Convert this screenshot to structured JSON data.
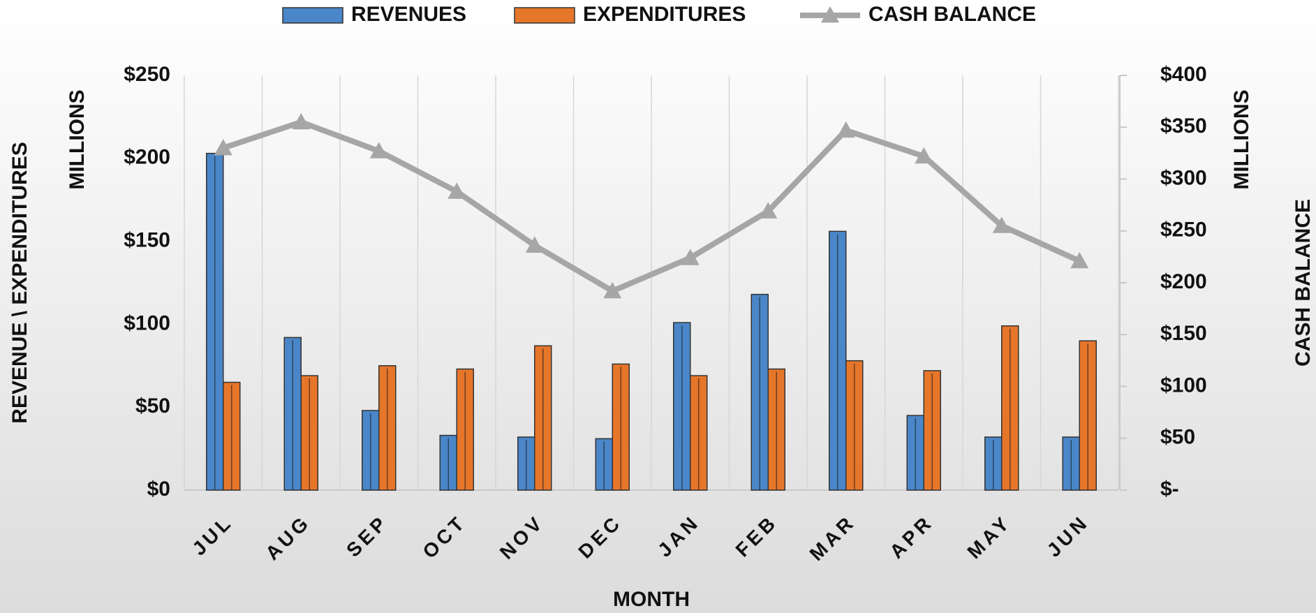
{
  "chart_data": {
    "type": "bar-line",
    "categories": [
      "JUL",
      "AUG",
      "SEP",
      "OCT",
      "NOV",
      "DEC",
      "JAN",
      "FEB",
      "MAR",
      "APR",
      "MAY",
      "JUN"
    ],
    "series": [
      {
        "name": "REVENUES",
        "color": "#4a86c8",
        "type": "bar",
        "values": [
          203,
          92,
          48,
          33,
          32,
          31,
          101,
          118,
          156,
          45,
          32,
          32
        ]
      },
      {
        "name": "EXPENDITURES",
        "color": "#e6762a",
        "type": "bar",
        "values": [
          65,
          69,
          75,
          73,
          87,
          76,
          69,
          73,
          78,
          72,
          99,
          90
        ]
      },
      {
        "name": "CASH BALANCE",
        "color": "#a6a6a6",
        "type": "line",
        "axis": "y2",
        "values": [
          330,
          355,
          327,
          288,
          236,
          192,
          224,
          269,
          347,
          322,
          255,
          221
        ]
      }
    ],
    "ylabel": "REVENUE \\ EXPENDITURES",
    "yunit": "MILLIONS",
    "y2label": "CASH BALANCE",
    "y2unit": "MILLIONS",
    "xlabel": "MONTH",
    "ylim": [
      0,
      250
    ],
    "yticks": [
      {
        "value": 0,
        "label": "$0"
      },
      {
        "value": 50,
        "label": "$50"
      },
      {
        "value": 100,
        "label": "$100"
      },
      {
        "value": 150,
        "label": "$150"
      },
      {
        "value": 200,
        "label": "$200"
      },
      {
        "value": 250,
        "label": "$250"
      }
    ],
    "y2lim": [
      0,
      400
    ],
    "y2ticks": [
      {
        "value": 0,
        "label": "$-"
      },
      {
        "value": 50,
        "label": "$50"
      },
      {
        "value": 100,
        "label": "$100"
      },
      {
        "value": 150,
        "label": "$150"
      },
      {
        "value": 200,
        "label": "$200"
      },
      {
        "value": 250,
        "label": "$250"
      },
      {
        "value": 300,
        "label": "$300"
      },
      {
        "value": 350,
        "label": "$350"
      },
      {
        "value": 400,
        "label": "$400"
      }
    ],
    "legend": "top"
  }
}
